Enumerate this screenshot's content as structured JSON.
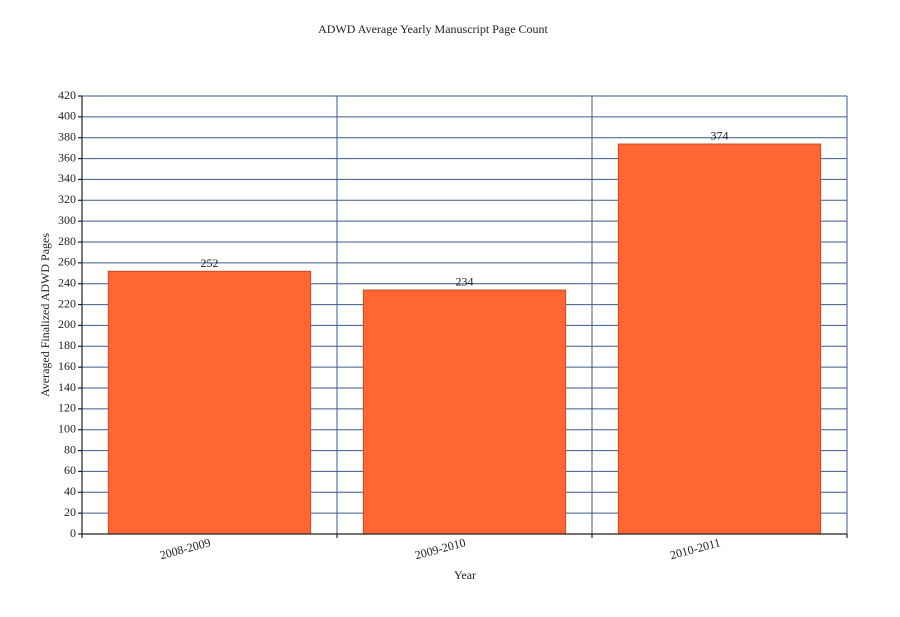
{
  "chart_data": {
    "type": "bar",
    "title": "ADWD Average Yearly Manuscript Page Count",
    "x_label": "Year",
    "y_label": "Averaged Finalized ADWD Pages",
    "categories": [
      "2008-2009",
      "2009-2010",
      "2010-2011"
    ],
    "values": [
      252,
      234,
      374
    ],
    "color": "#ff6633",
    "ylim": [
      0,
      420
    ],
    "yticks": [
      0,
      20,
      40,
      60,
      80,
      100,
      120,
      140,
      160,
      180,
      200,
      220,
      240,
      260,
      280,
      300,
      320,
      340,
      360,
      380,
      400,
      420
    ],
    "grid": true
  }
}
